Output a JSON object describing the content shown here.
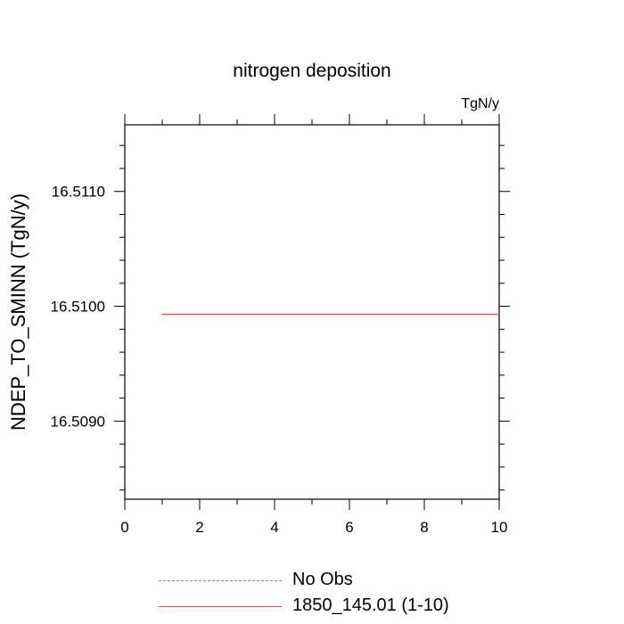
{
  "chart_data": {
    "type": "line",
    "title": "nitrogen deposition",
    "units": "TgN/y",
    "ylabel": "NDEP_TO_SMINN  (TgN/y)",
    "xlabel": "",
    "xlim": [
      0,
      10
    ],
    "ylim": [
      16.50832,
      16.51158
    ],
    "x_ticks": [
      0,
      2,
      4,
      6,
      8,
      10
    ],
    "x_tick_labels": [
      "0",
      "2",
      "4",
      "6",
      "8",
      "10"
    ],
    "x_minor_step": 1,
    "y_ticks": [
      16.509,
      16.51,
      16.511
    ],
    "y_tick_labels": [
      "16.5090",
      "16.5100",
      "16.5110"
    ],
    "y_minor_step": 0.0002,
    "grid": false,
    "legend_position": "bottom",
    "series": [
      {
        "name": "1850_145.01 (1-10)",
        "color": "#e34a4a",
        "style": "solid",
        "x": [
          1,
          2,
          3,
          4,
          5,
          6,
          7,
          8,
          9,
          10
        ],
        "values": [
          16.50993,
          16.50993,
          16.50993,
          16.50993,
          16.50993,
          16.50993,
          16.50993,
          16.50993,
          16.50993,
          16.50993
        ]
      }
    ],
    "legend": [
      {
        "label": "No Obs",
        "color": "#8080ff",
        "style": "dashed"
      },
      {
        "label": "1850_145.01 (1-10)",
        "color": "#e34a4a",
        "style": "solid"
      }
    ]
  }
}
